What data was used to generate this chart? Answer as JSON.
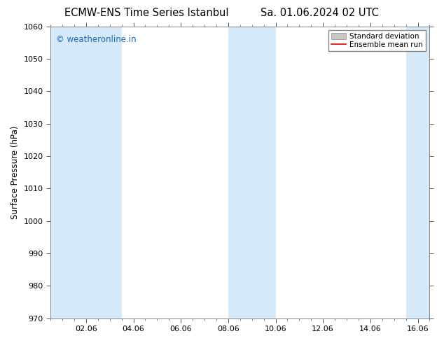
{
  "title_left": "ECMW-ENS Time Series Istanbul",
  "title_right": "Sa. 01.06.2024 02 UTC",
  "ylabel": "Surface Pressure (hPa)",
  "ylim": [
    970,
    1060
  ],
  "yticks": [
    970,
    980,
    990,
    1000,
    1010,
    1020,
    1030,
    1040,
    1050,
    1060
  ],
  "xlim": [
    0,
    16
  ],
  "xtick_labels": [
    "02.06",
    "04.06",
    "06.06",
    "08.06",
    "10.06",
    "12.06",
    "14.06",
    "16.06"
  ],
  "xtick_positions": [
    1.5,
    3.5,
    5.5,
    7.5,
    9.5,
    11.5,
    13.5,
    15.5
  ],
  "minor_xtick_positions": [
    0,
    0.5,
    1,
    1.5,
    2,
    2.5,
    3,
    3.5,
    4,
    4.5,
    5,
    5.5,
    6,
    6.5,
    7,
    7.5,
    8,
    8.5,
    9,
    9.5,
    10,
    10.5,
    11,
    11.5,
    12,
    12.5,
    13,
    13.5,
    14,
    14.5,
    15,
    15.5,
    16
  ],
  "shaded_bands": [
    {
      "x_start": 0.0,
      "x_end": 2.0,
      "color": "#d6e9f8"
    },
    {
      "x_start": 2.0,
      "x_end": 3.0,
      "color": "#d6e9f8"
    },
    {
      "x_start": 7.5,
      "x_end": 9.5,
      "color": "#d6e9f8"
    },
    {
      "x_start": 15.0,
      "x_end": 16.0,
      "color": "#d6e9f8"
    }
  ],
  "legend_std_color": "#c8c8c8",
  "legend_mean_color": "#dd0000",
  "watermark_text": "© weatheronline.in",
  "watermark_color": "#1a6aba",
  "background_color": "#ffffff",
  "plot_bg_color": "#ffffff",
  "title_fontsize": 10.5,
  "axis_fontsize": 8.5,
  "tick_fontsize": 8,
  "legend_fontsize": 7.5,
  "spine_color": "#888888",
  "tick_color": "#555555"
}
